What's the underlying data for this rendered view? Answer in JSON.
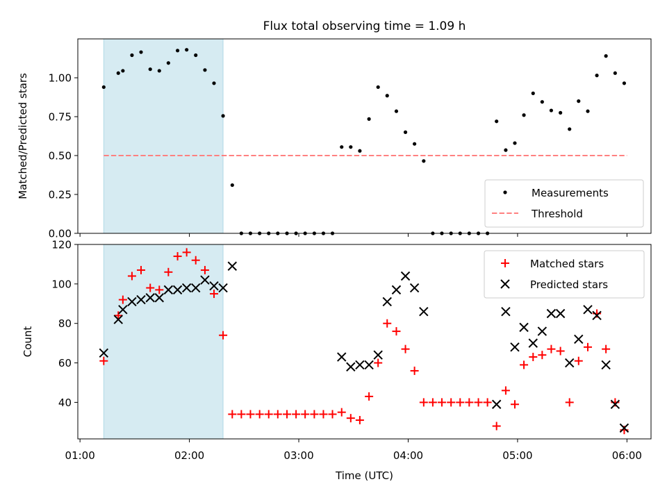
{
  "chart_data": [
    {
      "type": "scatter",
      "title": "Flux total observing time = 1.09 h",
      "xlabel": "",
      "ylabel": "Matched/Predicted stars",
      "ylim": [
        0,
        1.25
      ],
      "yticks": [
        0,
        0.25,
        0.5,
        0.75,
        1.0
      ],
      "ytick_labels": [
        "0.00",
        "0.25",
        "0.50",
        "0.75",
        "1.00"
      ],
      "xlim": [
        0.98,
        6.22
      ],
      "xticks": [
        1,
        2,
        3,
        4,
        5,
        6
      ],
      "highlight_span": [
        1.217,
        2.308
      ],
      "threshold": {
        "value": 0.5,
        "x_range": [
          1.217,
          6.0
        ],
        "color": "#ff8080"
      },
      "legend_position": "lower-right",
      "series": [
        {
          "name": "Measurements",
          "color": "#000000",
          "marker": "dot",
          "x": [
            1.217,
            1.35,
            1.392,
            1.475,
            1.558,
            1.642,
            1.725,
            1.808,
            1.892,
            1.975,
            2.058,
            2.142,
            2.225,
            2.308,
            2.392,
            2.475,
            2.558,
            2.642,
            2.725,
            2.808,
            2.892,
            2.975,
            3.058,
            3.142,
            3.225,
            3.308,
            3.392,
            3.475,
            3.558,
            3.642,
            3.725,
            3.808,
            3.892,
            3.975,
            4.058,
            4.142,
            4.225,
            4.308,
            4.392,
            4.475,
            4.558,
            4.642,
            4.725,
            4.808,
            4.892,
            4.975,
            5.058,
            5.142,
            5.225,
            5.308,
            5.392,
            5.475,
            5.558,
            5.642,
            5.725,
            5.808,
            5.892,
            5.975
          ],
          "y": [
            0.94,
            1.03,
            1.045,
            1.145,
            1.165,
            1.055,
            1.045,
            1.095,
            1.175,
            1.18,
            1.145,
            1.05,
            0.965,
            0.755,
            0.31,
            0,
            0,
            0,
            0,
            0,
            0,
            0,
            0,
            0,
            0,
            0,
            0.555,
            0.555,
            0.53,
            0.735,
            0.94,
            0.885,
            0.785,
            0.65,
            0.575,
            0.465,
            0,
            0,
            0,
            0,
            0,
            0,
            0,
            0.72,
            0.535,
            0.58,
            0.76,
            0.9,
            0.845,
            0.79,
            0.775,
            0.67,
            0.85,
            0.785,
            1.015,
            1.14,
            1.03,
            0.965
          ]
        }
      ],
      "legend": [
        "Measurements",
        "Threshold"
      ]
    },
    {
      "type": "scatter",
      "title": "",
      "xlabel": "Time (UTC)",
      "ylabel": "Count",
      "ylim": [
        21.5,
        120
      ],
      "yticks": [
        40,
        60,
        80,
        100,
        120
      ],
      "ytick_labels": [
        "40",
        "60",
        "80",
        "100",
        "120"
      ],
      "xlim": [
        0.98,
        6.22
      ],
      "xticks": [
        1,
        2,
        3,
        4,
        5,
        6
      ],
      "xtick_labels": [
        "01:00",
        "02:00",
        "03:00",
        "04:00",
        "05:00",
        "06:00"
      ],
      "highlight_span": [
        1.217,
        2.308
      ],
      "legend_position": "upper-right",
      "series": [
        {
          "name": "Matched stars",
          "color": "#ff0000",
          "marker": "plus",
          "x": [
            1.217,
            1.35,
            1.392,
            1.475,
            1.558,
            1.642,
            1.725,
            1.808,
            1.892,
            1.975,
            2.058,
            2.142,
            2.225,
            2.308,
            2.392,
            2.475,
            2.558,
            2.642,
            2.725,
            2.808,
            2.892,
            2.975,
            3.058,
            3.142,
            3.225,
            3.308,
            3.392,
            3.475,
            3.558,
            3.642,
            3.725,
            3.808,
            3.892,
            3.975,
            4.058,
            4.142,
            4.225,
            4.308,
            4.392,
            4.475,
            4.558,
            4.642,
            4.725,
            4.808,
            4.892,
            4.975,
            5.058,
            5.142,
            5.225,
            5.308,
            5.392,
            5.475,
            5.558,
            5.642,
            5.725,
            5.808,
            5.892,
            5.975
          ],
          "y": [
            61,
            84,
            92,
            104,
            107,
            98,
            97,
            106,
            114,
            116,
            112,
            107,
            95,
            74,
            34,
            34,
            34,
            34,
            34,
            34,
            34,
            34,
            34,
            34,
            34,
            34,
            35,
            32,
            31,
            43,
            60,
            80,
            76,
            67,
            56,
            40,
            40,
            40,
            40,
            40,
            40,
            40,
            40,
            28,
            46,
            39,
            59,
            63,
            64,
            67,
            66,
            40,
            61,
            68,
            85,
            67,
            40,
            26
          ]
        },
        {
          "name": "Predicted stars",
          "color": "#000000",
          "marker": "x",
          "x": [
            1.217,
            1.35,
            1.392,
            1.475,
            1.558,
            1.642,
            1.725,
            1.808,
            1.892,
            1.975,
            2.058,
            2.142,
            2.225,
            2.308,
            2.392,
            3.392,
            3.475,
            3.558,
            3.642,
            3.725,
            3.808,
            3.892,
            3.975,
            4.058,
            4.142,
            4.808,
            4.892,
            4.975,
            5.058,
            5.142,
            5.225,
            5.308,
            5.392,
            5.475,
            5.558,
            5.642,
            5.725,
            5.808,
            5.892,
            5.975
          ],
          "y": [
            65,
            82,
            87,
            91,
            92,
            93,
            93,
            97,
            97,
            98,
            98,
            102,
            99,
            98,
            109,
            63,
            58,
            59,
            59,
            64,
            91,
            97,
            104,
            98,
            86,
            39,
            86,
            68,
            78,
            70,
            76,
            85,
            85,
            60,
            72,
            87,
            84,
            59,
            39,
            27
          ]
        }
      ],
      "legend": [
        "Matched stars",
        "Predicted stars"
      ]
    }
  ]
}
